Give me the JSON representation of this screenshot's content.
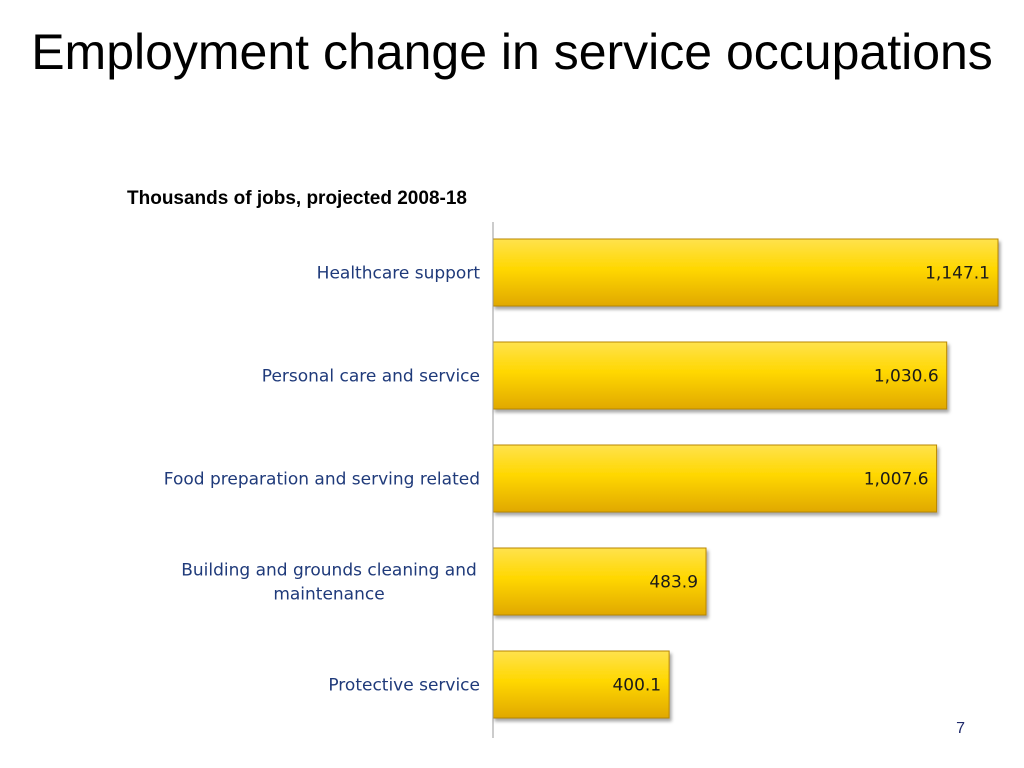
{
  "slide": {
    "title": "Employment change in service occupations",
    "page_number": "7"
  },
  "colors": {
    "bar_fill_top": "#FFE24D",
    "bar_fill_mid": "#FFD700",
    "bar_fill_bottom": "#E0A800",
    "bar_stroke": "#B88600",
    "axis": "#999999",
    "category_text": "#1f3a7a"
  },
  "chart_data": {
    "type": "bar",
    "orientation": "horizontal",
    "subtitle": "Thousands of jobs, projected 2008-18",
    "categories": [
      [
        "Healthcare support"
      ],
      [
        "Personal care and service"
      ],
      [
        "Food preparation and serving related"
      ],
      [
        "Building and grounds cleaning and",
        "maintenance"
      ],
      [
        "Protective service"
      ]
    ],
    "values": [
      1147.1,
      1030.6,
      1007.6,
      483.9,
      400.1
    ],
    "value_labels": [
      "1,147.1",
      "1,030.6",
      "1,007.6",
      "483.9",
      "400.1"
    ],
    "xlim": [
      0,
      1147.1
    ],
    "grid": false,
    "data_labels": "inside-end"
  }
}
